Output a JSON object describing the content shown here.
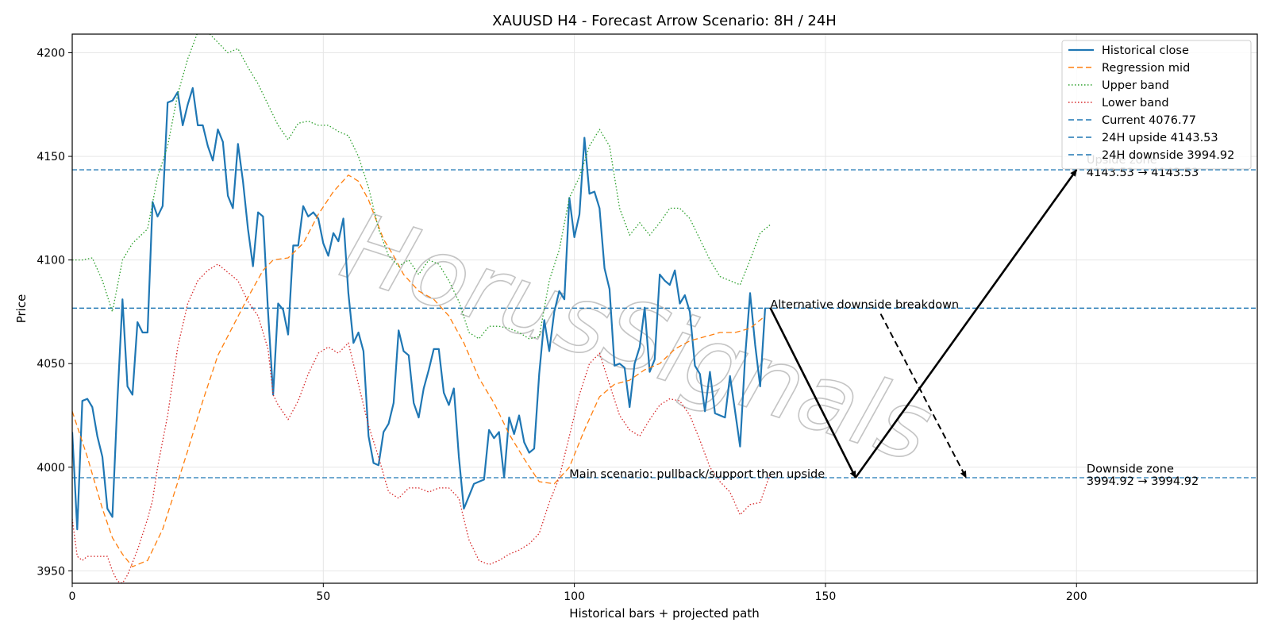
{
  "chart_data": {
    "type": "line",
    "title": "XAUUSD H4 - Forecast Arrow Scenario: 8H / 24H",
    "xlabel": "Historical bars + projected path",
    "ylabel": "Price",
    "xlim": [
      0,
      236
    ],
    "ylim": [
      3944,
      4209
    ],
    "xticks": [
      0,
      50,
      100,
      150,
      200
    ],
    "yticks": [
      3950,
      4000,
      4050,
      4100,
      4150,
      4200
    ],
    "grid": true,
    "legend_position": "top-right",
    "watermark": "HorusSignals",
    "series": [
      {
        "name": "Historical close",
        "style": "solid",
        "color": "#1f77b4",
        "x": [
          0,
          1,
          2,
          3,
          4,
          5,
          6,
          7,
          8,
          9,
          10,
          11,
          12,
          13,
          14,
          15,
          16,
          17,
          18,
          19,
          20,
          21,
          22,
          23,
          24,
          25,
          26,
          27,
          28,
          29,
          30,
          31,
          32,
          33,
          34,
          35,
          36,
          37,
          38,
          39,
          40,
          41,
          42,
          43,
          44,
          45,
          46,
          47,
          48,
          49,
          50,
          51,
          52,
          53,
          54,
          55,
          56,
          57,
          58,
          59,
          60,
          61,
          62,
          63,
          64,
          65,
          66,
          67,
          68,
          69,
          70,
          71,
          72,
          73,
          74,
          75,
          76,
          77,
          78,
          79,
          80,
          81,
          82,
          83,
          84,
          85,
          86,
          87,
          88,
          89,
          90,
          91,
          92,
          93,
          94,
          95,
          96,
          97,
          98,
          99,
          100,
          101,
          102,
          103,
          104,
          105,
          106,
          107,
          108,
          109,
          110,
          111,
          112,
          113,
          114,
          115,
          116,
          117,
          118,
          119,
          120,
          121,
          122,
          123,
          124,
          125,
          126,
          127,
          128,
          129,
          130,
          131,
          132,
          133,
          134,
          135,
          136,
          137,
          138
        ],
        "values": [
          4017,
          3970,
          4032,
          4033,
          4029,
          4015,
          4005,
          3980,
          3976,
          4032,
          4081,
          4039,
          4035,
          4070,
          4065,
          4065,
          4128,
          4121,
          4126,
          4176,
          4177,
          4181,
          4165,
          4175,
          4183,
          4165,
          4165,
          4155,
          4148,
          4163,
          4157,
          4131,
          4125,
          4156,
          4138,
          4115,
          4097,
          4123,
          4121,
          4075,
          4035,
          4079,
          4076,
          4064,
          4107,
          4107,
          4126,
          4121,
          4123,
          4120,
          4108,
          4102,
          4113,
          4109,
          4120,
          4084,
          4060,
          4065,
          4056,
          4015,
          4002,
          4001,
          4017,
          4021,
          4031,
          4066,
          4056,
          4054,
          4031,
          4024,
          4038,
          4047,
          4057,
          4057,
          4036,
          4030,
          4038,
          4005,
          3980,
          3986,
          3992,
          3993,
          3994,
          4018,
          4014,
          4017,
          3995,
          4024,
          4016,
          4025,
          4012,
          4007,
          4009,
          4045,
          4071,
          4056,
          4075,
          4085,
          4081,
          4130,
          4111,
          4122,
          4159,
          4132,
          4133,
          4125,
          4096,
          4086,
          4049,
          4050,
          4048,
          4029,
          4050,
          4058,
          4077,
          4046,
          4052,
          4093,
          4090,
          4088,
          4095,
          4079,
          4083,
          4075,
          4049,
          4045,
          4027,
          4046,
          4026,
          4025,
          4024,
          4044,
          4027,
          4010,
          4053,
          4084,
          4059,
          4039,
          4077
        ]
      },
      {
        "name": "Regression mid",
        "style": "dashed",
        "color": "#ff7f0e",
        "x": [
          0,
          3,
          6,
          8,
          10,
          12,
          15,
          18,
          20,
          23,
          26,
          29,
          32,
          35,
          38,
          40,
          43,
          46,
          49,
          52,
          55,
          57,
          59,
          62,
          64,
          66,
          69,
          72,
          75,
          78,
          81,
          84,
          87,
          90,
          93,
          96,
          99,
          102,
          105,
          108,
          111,
          114,
          117,
          120,
          123,
          126,
          129,
          132,
          135,
          138
        ],
        "values": [
          4027,
          4005,
          3980,
          3966,
          3958,
          3952,
          3955,
          3970,
          3985,
          4008,
          4032,
          4054,
          4068,
          4082,
          4095,
          4100,
          4101,
          4108,
          4122,
          4133,
          4141,
          4138,
          4129,
          4110,
          4102,
          4093,
          4085,
          4081,
          4073,
          4060,
          4043,
          4031,
          4016,
          4004,
          3993,
          3992,
          4000,
          4018,
          4034,
          4040,
          4042,
          4047,
          4050,
          4057,
          4061,
          4063,
          4065,
          4065,
          4067,
          4073
        ]
      },
      {
        "name": "Upper band",
        "style": "dotted",
        "color": "#2ca02c",
        "x": [
          0,
          2,
          4,
          6,
          8,
          10,
          12,
          15,
          17,
          19,
          21,
          23,
          25,
          27,
          29,
          31,
          33,
          35,
          37,
          39,
          41,
          43,
          45,
          47,
          49,
          51,
          53,
          55,
          57,
          59,
          61,
          63,
          65,
          67,
          69,
          71,
          73,
          75,
          77,
          79,
          81,
          83,
          85,
          87,
          89,
          91,
          93,
          95,
          97,
          99,
          101,
          103,
          105,
          107,
          109,
          111,
          113,
          115,
          117,
          119,
          121,
          123,
          125,
          127,
          129,
          131,
          133,
          135,
          137,
          139
        ],
        "values": [
          4100,
          4100,
          4101,
          4090,
          4075,
          4100,
          4108,
          4115,
          4140,
          4155,
          4180,
          4197,
          4210,
          4210,
          4205,
          4200,
          4202,
          4193,
          4185,
          4175,
          4165,
          4158,
          4166,
          4167,
          4165,
          4165,
          4162,
          4160,
          4150,
          4135,
          4115,
          4102,
          4097,
          4100,
          4093,
          4100,
          4098,
          4090,
          4080,
          4065,
          4062,
          4068,
          4068,
          4067,
          4065,
          4062,
          4063,
          4090,
          4105,
          4130,
          4140,
          4155,
          4163,
          4155,
          4125,
          4112,
          4118,
          4112,
          4118,
          4125,
          4125,
          4120,
          4110,
          4100,
          4092,
          4090,
          4088,
          4100,
          4113,
          4117
        ]
      },
      {
        "name": "Lower band",
        "style": "dotted",
        "color": "#d62728",
        "x": [
          0,
          1,
          2,
          3,
          5,
          7,
          8,
          9,
          10,
          11,
          13,
          15,
          16,
          17,
          19,
          21,
          23,
          25,
          27,
          29,
          31,
          33,
          35,
          37,
          39,
          40,
          41,
          43,
          45,
          47,
          49,
          51,
          53,
          55,
          57,
          59,
          61,
          63,
          65,
          67,
          69,
          71,
          73,
          75,
          77,
          79,
          81,
          83,
          85,
          87,
          89,
          91,
          93,
          95,
          97,
          99,
          101,
          103,
          105,
          107,
          109,
          111,
          113,
          115,
          117,
          119,
          121,
          123,
          125,
          127,
          129,
          131,
          133,
          135,
          137,
          139
        ],
        "values": [
          3975,
          3957,
          3955,
          3957,
          3957,
          3957,
          3950,
          3945,
          3944,
          3948,
          3960,
          3975,
          3984,
          4000,
          4025,
          4058,
          4079,
          4090,
          4095,
          4098,
          4094,
          4090,
          4080,
          4073,
          4057,
          4035,
          4030,
          4023,
          4032,
          4045,
          4055,
          4058,
          4055,
          4060,
          4040,
          4020,
          4005,
          3988,
          3985,
          3990,
          3990,
          3988,
          3990,
          3990,
          3985,
          3965,
          3955,
          3953,
          3955,
          3958,
          3960,
          3963,
          3968,
          3983,
          3995,
          4015,
          4035,
          4050,
          4055,
          4040,
          4025,
          4018,
          4015,
          4023,
          4030,
          4033,
          4032,
          4025,
          4013,
          4000,
          3993,
          3988,
          3977,
          3982,
          3983,
          3997
        ]
      }
    ],
    "reference_lines": [
      {
        "name": "Current 4076.77",
        "value": 4076.77,
        "style": "dashed",
        "color": "#1f77b4"
      },
      {
        "name": "24H upside 4143.53",
        "value": 4143.53,
        "style": "dashed",
        "color": "#1f77b4"
      },
      {
        "name": "24H downside 3994.92",
        "value": 3994.92,
        "style": "dashed",
        "color": "#1f77b4"
      }
    ],
    "arrows": [
      {
        "name": "main-leg-1",
        "from": [
          139,
          4077
        ],
        "to": [
          156,
          3995
        ],
        "style": "solid"
      },
      {
        "name": "main-leg-2",
        "from": [
          156,
          3995
        ],
        "to": [
          200,
          4143.53
        ],
        "style": "solid"
      },
      {
        "name": "alternative",
        "from": [
          161,
          4074
        ],
        "to": [
          178,
          3995
        ],
        "style": "dashed"
      }
    ],
    "annotations": [
      {
        "name": "alt-label",
        "text": "Alternative downside breakdown",
        "x": 139,
        "y": 4076.77
      },
      {
        "name": "main-label",
        "text": "Main scenario: pullback/support then upside",
        "x": 99,
        "y": 3994.92
      },
      {
        "name": "upside-zone-label",
        "text": "Upside zone",
        "x": 202,
        "y": 4146.5
      },
      {
        "name": "upside-zone-range",
        "text": "4143.53 → 4143.53",
        "x": 202,
        "y": 4140.5
      },
      {
        "name": "downside-zone-label",
        "text": "Downside zone",
        "x": 202,
        "y": 3997.5
      },
      {
        "name": "downside-zone-range",
        "text": "3994.92 → 3994.92",
        "x": 202,
        "y": 3991.4
      }
    ]
  }
}
